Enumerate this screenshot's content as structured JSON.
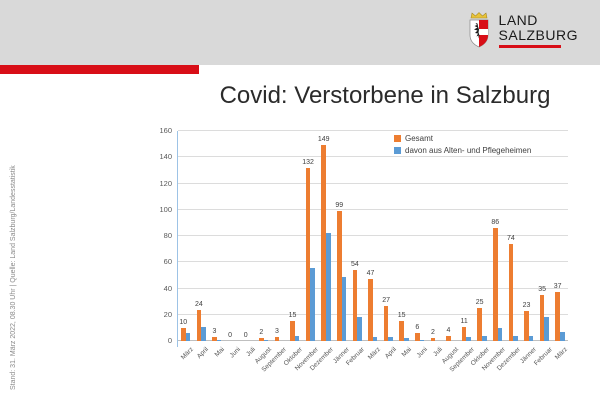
{
  "header": {
    "banner_color": "#d9d9d9",
    "accent_color": "#d80e17",
    "logo": {
      "line1": "LAND",
      "line2": "SALZBURG"
    }
  },
  "sidebar": {
    "caption": "Stand: 31. März 2022, 08.30 Uhr | Quelle: Land Salzburg/Landesstatistik"
  },
  "page_title": "Covid: Verstorbene in Salzburg",
  "chart_data": {
    "type": "bar",
    "title": "Covid: Verstorbene in Salzburg",
    "categories": [
      "März",
      "April",
      "Mai",
      "Juni",
      "Juli",
      "August",
      "September",
      "Oktober",
      "November",
      "Dezember",
      "Jänner",
      "Februar",
      "März",
      "April",
      "Mai",
      "Juni",
      "Juli",
      "August",
      "September",
      "Oktober",
      "November",
      "Dezember",
      "Jänner",
      "Februar",
      "März"
    ],
    "series": [
      {
        "name": "Gesamt",
        "color": "#ED7D31",
        "data_labels": true,
        "values": [
          10,
          24,
          3,
          0,
          0,
          2,
          3,
          15,
          132,
          149,
          99,
          54,
          47,
          27,
          15,
          6,
          2,
          4,
          11,
          25,
          86,
          74,
          23,
          35,
          37
        ]
      },
      {
        "name": "davon aus Alten- und Pflegeheimen",
        "color": "#5B9BD5",
        "data_labels": false,
        "values": [
          6,
          11,
          1,
          0,
          0,
          1,
          0,
          4,
          56,
          82,
          49,
          18,
          3,
          3,
          2,
          1,
          0,
          0,
          3,
          4,
          10,
          4,
          4,
          18,
          7
        ]
      }
    ],
    "ylim": [
      0,
      160
    ],
    "ytick_step": 20,
    "yticks": [
      "0",
      "20",
      "40",
      "60",
      "80",
      "100",
      "120",
      "140",
      "160"
    ],
    "grid": true,
    "legend_position": "top-right"
  }
}
